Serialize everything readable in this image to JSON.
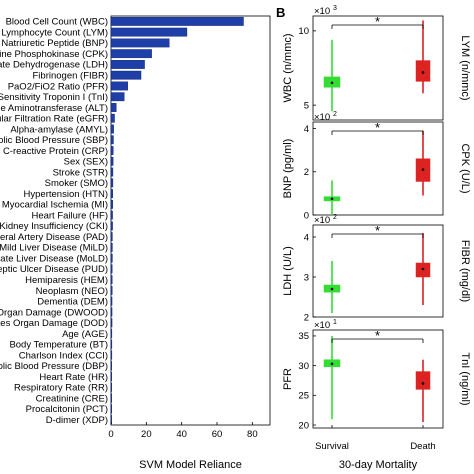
{
  "chart_data": [
    {
      "panel": "",
      "type": "bar",
      "orientation": "horizontal",
      "xlabel": "SVM Model Reliance",
      "xlim": [
        0,
        90
      ],
      "xticks": [
        0,
        20,
        40,
        60,
        80
      ],
      "categories": [
        "Blood Cell Count (WBC)",
        "Lymphocyte Count (LYM)",
        "Natriuretic Peptide (BNP)",
        "Creatine Phosphokinase (CPK)",
        "Lactate Dehydrogenase (LDH)",
        "Fibrinogen (FIBR)",
        "PaO2/FiO2 Ratio (PFR)",
        "High Sensitivity Troponin I (TnI)",
        "Alanine Aminotransferase (ALT)",
        "Glomerular Filtration Rate (eGFR)",
        "Alpha-amylase (AMYL)",
        "Systolic Blood Pressure (SBP)",
        "C-reactive Protein (CRP)",
        "Sex (SEX)",
        "Stroke (STR)",
        "Smoker (SMO)",
        "Hypertension (HTN)",
        "Myocardial Ischemia (MI)",
        "Heart Failure (HF)",
        "Chronic Kidney Insufficiency (CKI)",
        "Peripheral Artery Disease (PAD)",
        "Mild Liver Disease (MiLD)",
        "Moderate Liver Disease (MoLD)",
        "Peptic Ulcer Disease (PUD)",
        "Hemiparesis (HEM)",
        "Neoplasm (NEO)",
        "Dementia (DEM)",
        "Diabetes with Organ Damage (DWOOD)",
        "Diabetes Organ Damage (DOD)",
        "Age (AGE)",
        "Body Temperature (BT)",
        "Charlson Index (CCI)",
        "Diastolic Blood Pressure (DBP)",
        "Heart Rate (HR)",
        "Respiratory Rate (RR)",
        "Creatinine (CRE)",
        "Procalcitonin (PCT)",
        "D-dimer (XDP)"
      ],
      "values": [
        75,
        43,
        33,
        23,
        19,
        17,
        9.5,
        7.5,
        3,
        2,
        1.5,
        1.4,
        1.3,
        1.2,
        1.1,
        1.1,
        1.0,
        1.0,
        0.9,
        0.9,
        0.8,
        0.8,
        0.8,
        0.7,
        0.7,
        0.7,
        0.6,
        0.6,
        0.6,
        0.5,
        0.5,
        0.5,
        0.4,
        0.4,
        0.4,
        0.3,
        0.3,
        0.3
      ],
      "color": "#1f3fa8"
    },
    {
      "panel": "B",
      "type": "box",
      "xlabel": "30-day Mortality",
      "groups": [
        "Survival",
        "Death"
      ],
      "colors": {
        "Survival": "#33dd33",
        "Death": "#dd2222"
      },
      "significance": "*",
      "subplots": [
        {
          "left_label": "WBC (n/mmc)",
          "right_label": "LYM (n/mmc)",
          "scale": "×10",
          "scale_exp": "3",
          "ylim": [
            4,
            11
          ],
          "yticks": [
            5,
            10
          ],
          "boxes": [
            {
              "group": "Survival",
              "whisker_low": 4.6,
              "q1": 6.2,
              "median": 6.5,
              "q3": 6.9,
              "whisker_high": 9.4
            },
            {
              "group": "Death",
              "whisker_low": 5.8,
              "q1": 6.6,
              "median": 7.2,
              "q3": 8.0,
              "whisker_high": 10.7
            }
          ]
        },
        {
          "left_label": "BNP (pg/ml)",
          "right_label": "CPK (U/L)",
          "scale": "×10",
          "scale_exp": "2",
          "ylim": [
            0,
            4.3
          ],
          "yticks": [
            0,
            2,
            4
          ],
          "boxes": [
            {
              "group": "Survival",
              "whisker_low": 0.0,
              "q1": 0.65,
              "median": 0.75,
              "q3": 0.85,
              "whisker_high": 1.6
            },
            {
              "group": "Death",
              "whisker_low": 0.9,
              "q1": 1.55,
              "median": 2.1,
              "q3": 2.6,
              "whisker_high": 3.9
            }
          ]
        },
        {
          "left_label": "LDH (U/L)",
          "right_label": "FIBR (mg/dl)",
          "scale": "×10",
          "scale_exp": "2",
          "ylim": [
            2,
            4.3
          ],
          "yticks": [
            2,
            3,
            4
          ],
          "boxes": [
            {
              "group": "Survival",
              "whisker_low": 2.1,
              "q1": 2.62,
              "median": 2.7,
              "q3": 2.8,
              "whisker_high": 3.4
            },
            {
              "group": "Death",
              "whisker_low": 2.3,
              "q1": 3.0,
              "median": 3.2,
              "q3": 3.35,
              "whisker_high": 4.1
            }
          ]
        },
        {
          "left_label": "PFR",
          "right_label": "TnI (ng/ml)",
          "scale": "×10",
          "scale_exp": "1",
          "ylim": [
            19.5,
            36
          ],
          "yticks": [
            20,
            25,
            30,
            35
          ],
          "boxes": [
            {
              "group": "Survival",
              "whisker_low": 21,
              "q1": 29.8,
              "median": 30.3,
              "q3": 31,
              "whisker_high": 35
            },
            {
              "group": "Death",
              "whisker_low": 20.5,
              "q1": 26,
              "median": 27,
              "q3": 29,
              "whisker_high": 31
            }
          ]
        }
      ]
    }
  ]
}
